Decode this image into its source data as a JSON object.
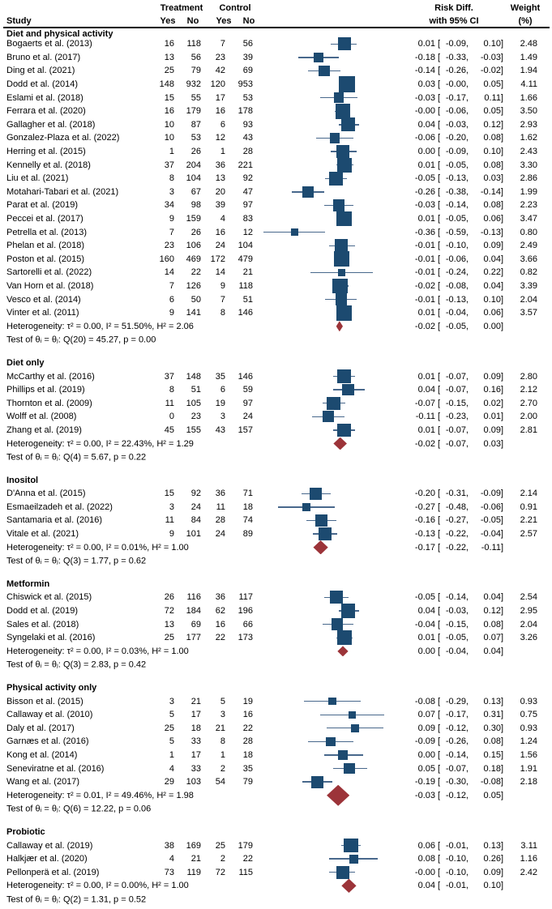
{
  "header": {
    "study": "Study",
    "treatment": "Treatment",
    "control": "Control",
    "yes": "Yes",
    "no": "No",
    "riskdiff_line1": "Risk Diff.",
    "riskdiff_line2": "with 95% CI",
    "weight_line1": "Weight",
    "weight_line2": "(%)"
  },
  "colors": {
    "marker_square": "#1c4a70",
    "ci_line": "#48688c",
    "diamond": "#9c3439",
    "text": "#000000",
    "rule": "#000000"
  },
  "chart_data": {
    "type": "forest",
    "effect_measure": "Risk Diff. with 95% CI",
    "x_axis_shown": false,
    "xlim_hint": [
      -0.65,
      0.35
    ],
    "groups": [
      {
        "label": "Diet and physical activity",
        "studies": [
          {
            "study": "Bogaerts et al. (2013)",
            "t_yes": "16",
            "t_no": "118",
            "c_yes": "7",
            "c_no": "56",
            "est": "0.01",
            "lo": "-0.09",
            "hi": "0.10",
            "weight": "2.48"
          },
          {
            "study": "Bruno et al. (2017)",
            "t_yes": "13",
            "t_no": "56",
            "c_yes": "23",
            "c_no": "39",
            "est": "-0.18",
            "lo": "-0.33",
            "hi": "-0.03",
            "weight": "1.49"
          },
          {
            "study": "Ding et al. (2021)",
            "t_yes": "25",
            "t_no": "79",
            "c_yes": "42",
            "c_no": "69",
            "est": "-0.14",
            "lo": "-0.26",
            "hi": "-0.02",
            "weight": "1.94"
          },
          {
            "study": "Dodd et al. (2014)",
            "t_yes": "148",
            "t_no": "932",
            "c_yes": "120",
            "c_no": "953",
            "est": "0.03",
            "lo": "-0.00",
            "hi": "0.05",
            "weight": "4.11"
          },
          {
            "study": "Eslami et al. (2018)",
            "t_yes": "15",
            "t_no": "55",
            "c_yes": "17",
            "c_no": "53",
            "est": "-0.03",
            "lo": "-0.17",
            "hi": "0.11",
            "weight": "1.66"
          },
          {
            "study": "Ferrara et al. (2020)",
            "t_yes": "16",
            "t_no": "179",
            "c_yes": "16",
            "c_no": "178",
            "est": "-0.00",
            "lo": "-0.06",
            "hi": "0.05",
            "weight": "3.50"
          },
          {
            "study": "Gallagher et al. (2018)",
            "t_yes": "10",
            "t_no": "87",
            "c_yes": "6",
            "c_no": "93",
            "est": "0.04",
            "lo": "-0.03",
            "hi": "0.12",
            "weight": "2.93"
          },
          {
            "study": "Gonzalez-Plaza et al. (2022)",
            "t_yes": "10",
            "t_no": "53",
            "c_yes": "12",
            "c_no": "43",
            "est": "-0.06",
            "lo": "-0.20",
            "hi": "0.08",
            "weight": "1.62"
          },
          {
            "study": "Herring et al. (2015)",
            "t_yes": "1",
            "t_no": "26",
            "c_yes": "1",
            "c_no": "28",
            "est": "0.00",
            "lo": "-0.09",
            "hi": "0.10",
            "weight": "2.43"
          },
          {
            "study": "Kennelly et al. (2018)",
            "t_yes": "37",
            "t_no": "204",
            "c_yes": "36",
            "c_no": "221",
            "est": "0.01",
            "lo": "-0.05",
            "hi": "0.08",
            "weight": "3.30"
          },
          {
            "study": "Liu et al. (2021)",
            "t_yes": "8",
            "t_no": "104",
            "c_yes": "13",
            "c_no": "92",
            "est": "-0.05",
            "lo": "-0.13",
            "hi": "0.03",
            "weight": "2.86"
          },
          {
            "study": "Motahari-Tabari et al. (2021)",
            "t_yes": "3",
            "t_no": "67",
            "c_yes": "20",
            "c_no": "47",
            "est": "-0.26",
            "lo": "-0.38",
            "hi": "-0.14",
            "weight": "1.99"
          },
          {
            "study": "Parat et al. (2019)",
            "t_yes": "34",
            "t_no": "98",
            "c_yes": "39",
            "c_no": "97",
            "est": "-0.03",
            "lo": "-0.14",
            "hi": "0.08",
            "weight": "2.23"
          },
          {
            "study": "Peccei et al. (2017)",
            "t_yes": "9",
            "t_no": "159",
            "c_yes": "4",
            "c_no": "83",
            "est": "0.01",
            "lo": "-0.05",
            "hi": "0.06",
            "weight": "3.47"
          },
          {
            "study": "Petrella et al. (2013)",
            "t_yes": "7",
            "t_no": "26",
            "c_yes": "16",
            "c_no": "12",
            "est": "-0.36",
            "lo": "-0.59",
            "hi": "-0.13",
            "weight": "0.80"
          },
          {
            "study": "Phelan et al. (2018)",
            "t_yes": "23",
            "t_no": "106",
            "c_yes": "24",
            "c_no": "104",
            "est": "-0.01",
            "lo": "-0.10",
            "hi": "0.09",
            "weight": "2.49"
          },
          {
            "study": "Poston et al. (2015)",
            "t_yes": "160",
            "t_no": "469",
            "c_yes": "172",
            "c_no": "479",
            "est": "-0.01",
            "lo": "-0.06",
            "hi": "0.04",
            "weight": "3.66"
          },
          {
            "study": "Sartorelli et al. (2022)",
            "t_yes": "14",
            "t_no": "22",
            "c_yes": "14",
            "c_no": "21",
            "est": "-0.01",
            "lo": "-0.24",
            "hi": "0.22",
            "weight": "0.82"
          },
          {
            "study": "Van Horn et al. (2018)",
            "t_yes": "7",
            "t_no": "126",
            "c_yes": "9",
            "c_no": "118",
            "est": "-0.02",
            "lo": "-0.08",
            "hi": "0.04",
            "weight": "3.39"
          },
          {
            "study": "Vesco et al. (2014)",
            "t_yes": "6",
            "t_no": "50",
            "c_yes": "7",
            "c_no": "51",
            "est": "-0.01",
            "lo": "-0.13",
            "hi": "0.10",
            "weight": "2.04"
          },
          {
            "study": "Vinter et al. (2011)",
            "t_yes": "9",
            "t_no": "141",
            "c_yes": "8",
            "c_no": "146",
            "est": "0.01",
            "lo": "-0.04",
            "hi": "0.06",
            "weight": "3.57"
          }
        ],
        "heterogeneity": "Heterogeneity: τ² = 0.00, I² = 51.50%, H² = 2.06",
        "summary": {
          "est": "-0.02",
          "lo": "-0.05",
          "hi": "0.00"
        },
        "test": "Test of θᵢ = θⱼ: Q(20) = 45.27, p = 0.00"
      },
      {
        "label": "Diet only",
        "studies": [
          {
            "study": "McCarthy et al. (2016)",
            "t_yes": "37",
            "t_no": "148",
            "c_yes": "35",
            "c_no": "146",
            "est": "0.01",
            "lo": "-0.07",
            "hi": "0.09",
            "weight": "2.80"
          },
          {
            "study": "Phillips et al. (2019)",
            "t_yes": "8",
            "t_no": "51",
            "c_yes": "6",
            "c_no": "59",
            "est": "0.04",
            "lo": "-0.07",
            "hi": "0.16",
            "weight": "2.12"
          },
          {
            "study": "Thornton et al. (2009)",
            "t_yes": "11",
            "t_no": "105",
            "c_yes": "19",
            "c_no": "97",
            "est": "-0.07",
            "lo": "-0.15",
            "hi": "0.02",
            "weight": "2.70"
          },
          {
            "study": "Wolff et al. (2008)",
            "t_yes": "0",
            "t_no": "23",
            "c_yes": "3",
            "c_no": "24",
            "est": "-0.11",
            "lo": "-0.23",
            "hi": "0.01",
            "weight": "2.00"
          },
          {
            "study": "Zhang et al. (2019)",
            "t_yes": "45",
            "t_no": "155",
            "c_yes": "43",
            "c_no": "157",
            "est": "0.01",
            "lo": "-0.07",
            "hi": "0.09",
            "weight": "2.81"
          }
        ],
        "heterogeneity": "Heterogeneity: τ² = 0.00, I² = 22.43%, H² = 1.29",
        "summary": {
          "est": "-0.02",
          "lo": "-0.07",
          "hi": "0.03"
        },
        "test": "Test of θᵢ = θⱼ: Q(4) = 5.67, p = 0.22"
      },
      {
        "label": "Inositol",
        "studies": [
          {
            "study": "D'Anna et al. (2015)",
            "t_yes": "15",
            "t_no": "92",
            "c_yes": "36",
            "c_no": "71",
            "est": "-0.20",
            "lo": "-0.31",
            "hi": "-0.09",
            "weight": "2.14"
          },
          {
            "study": "Esmaeilzadeh et al. (2022)",
            "t_yes": "3",
            "t_no": "24",
            "c_yes": "11",
            "c_no": "18",
            "est": "-0.27",
            "lo": "-0.48",
            "hi": "-0.06",
            "weight": "0.91"
          },
          {
            "study": "Santamaria et al. (2016)",
            "t_yes": "11",
            "t_no": "84",
            "c_yes": "28",
            "c_no": "74",
            "est": "-0.16",
            "lo": "-0.27",
            "hi": "-0.05",
            "weight": "2.21"
          },
          {
            "study": "Vitale et al. (2021)",
            "t_yes": "9",
            "t_no": "101",
            "c_yes": "24",
            "c_no": "89",
            "est": "-0.13",
            "lo": "-0.22",
            "hi": "-0.04",
            "weight": "2.57"
          }
        ],
        "heterogeneity": "Heterogeneity: τ² = 0.00, I² = 0.01%, H² = 1.00",
        "summary": {
          "est": "-0.17",
          "lo": "-0.22",
          "hi": "-0.11"
        },
        "test": "Test of θᵢ = θⱼ: Q(3) = 1.77, p = 0.62"
      },
      {
        "label": "Metformin",
        "studies": [
          {
            "study": "Chiswick et al. (2015)",
            "t_yes": "26",
            "t_no": "116",
            "c_yes": "36",
            "c_no": "117",
            "est": "-0.05",
            "lo": "-0.14",
            "hi": "0.04",
            "weight": "2.54"
          },
          {
            "study": "Dodd et al. (2019)",
            "t_yes": "72",
            "t_no": "184",
            "c_yes": "62",
            "c_no": "196",
            "est": "0.04",
            "lo": "-0.03",
            "hi": "0.12",
            "weight": "2.95"
          },
          {
            "study": "Sales et al. (2018)",
            "t_yes": "13",
            "t_no": "69",
            "c_yes": "16",
            "c_no": "66",
            "est": "-0.04",
            "lo": "-0.15",
            "hi": "0.08",
            "weight": "2.04"
          },
          {
            "study": "Syngelaki et al. (2016)",
            "t_yes": "25",
            "t_no": "177",
            "c_yes": "22",
            "c_no": "173",
            "est": "0.01",
            "lo": "-0.05",
            "hi": "0.07",
            "weight": "3.26"
          }
        ],
        "heterogeneity": "Heterogeneity: τ² = 0.00, I² = 0.03%, H² = 1.00",
        "summary": {
          "est": "0.00",
          "lo": "-0.04",
          "hi": "0.04"
        },
        "test": "Test of θᵢ = θⱼ: Q(3) = 2.83, p = 0.42"
      },
      {
        "label": "Physical activity only",
        "studies": [
          {
            "study": "Bisson et al. (2015)",
            "t_yes": "3",
            "t_no": "21",
            "c_yes": "5",
            "c_no": "19",
            "est": "-0.08",
            "lo": "-0.29",
            "hi": "0.13",
            "weight": "0.93"
          },
          {
            "study": "Callaway et al. (2010)",
            "t_yes": "5",
            "t_no": "17",
            "c_yes": "3",
            "c_no": "16",
            "est": "0.07",
            "lo": "-0.17",
            "hi": "0.31",
            "weight": "0.75"
          },
          {
            "study": "Daly et al. (2017)",
            "t_yes": "25",
            "t_no": "18",
            "c_yes": "21",
            "c_no": "22",
            "est": "0.09",
            "lo": "-0.12",
            "hi": "0.30",
            "weight": "0.93"
          },
          {
            "study": "Garnæs et al. (2016)",
            "t_yes": "5",
            "t_no": "33",
            "c_yes": "8",
            "c_no": "28",
            "est": "-0.09",
            "lo": "-0.26",
            "hi": "0.08",
            "weight": "1.24"
          },
          {
            "study": "Kong et al. (2014)",
            "t_yes": "1",
            "t_no": "17",
            "c_yes": "1",
            "c_no": "18",
            "est": "0.00",
            "lo": "-0.14",
            "hi": "0.15",
            "weight": "1.56"
          },
          {
            "study": "Seneviratne et al. (2016)",
            "t_yes": "4",
            "t_no": "33",
            "c_yes": "2",
            "c_no": "35",
            "est": "0.05",
            "lo": "-0.07",
            "hi": "0.18",
            "weight": "1.91"
          },
          {
            "study": "Wang et al. (2017)",
            "t_yes": "29",
            "t_no": "103",
            "c_yes": "54",
            "c_no": "79",
            "est": "-0.19",
            "lo": "-0.30",
            "hi": "-0.08",
            "weight": "2.18"
          }
        ],
        "heterogeneity": "Heterogeneity: τ² = 0.01, I² = 49.46%, H² = 1.98",
        "summary": {
          "est": "-0.03",
          "lo": "-0.12",
          "hi": "0.05"
        },
        "test": "Test of θᵢ = θⱼ: Q(6) = 12.22, p = 0.06"
      },
      {
        "label": "Probiotic",
        "studies": [
          {
            "study": "Callaway et al. (2019)",
            "t_yes": "38",
            "t_no": "169",
            "c_yes": "25",
            "c_no": "179",
            "est": "0.06",
            "lo": "-0.01",
            "hi": "0.13",
            "weight": "3.11"
          },
          {
            "study": "Halkjær et al. (2020)",
            "t_yes": "4",
            "t_no": "21",
            "c_yes": "2",
            "c_no": "22",
            "est": "0.08",
            "lo": "-0.10",
            "hi": "0.26",
            "weight": "1.16"
          },
          {
            "study": "Pellonperä et al. (2019)",
            "t_yes": "73",
            "t_no": "119",
            "c_yes": "72",
            "c_no": "115",
            "est": "-0.00",
            "lo": "-0.10",
            "hi": "0.09",
            "weight": "2.42"
          }
        ],
        "heterogeneity": "Heterogeneity: τ² = 0.00, I² = 0.00%, H² = 1.00",
        "summary": {
          "est": "0.04",
          "lo": "-0.01",
          "hi": "0.10"
        },
        "test": "Test of θᵢ = θⱼ: Q(2) = 1.31, p = 0.52"
      }
    ]
  }
}
